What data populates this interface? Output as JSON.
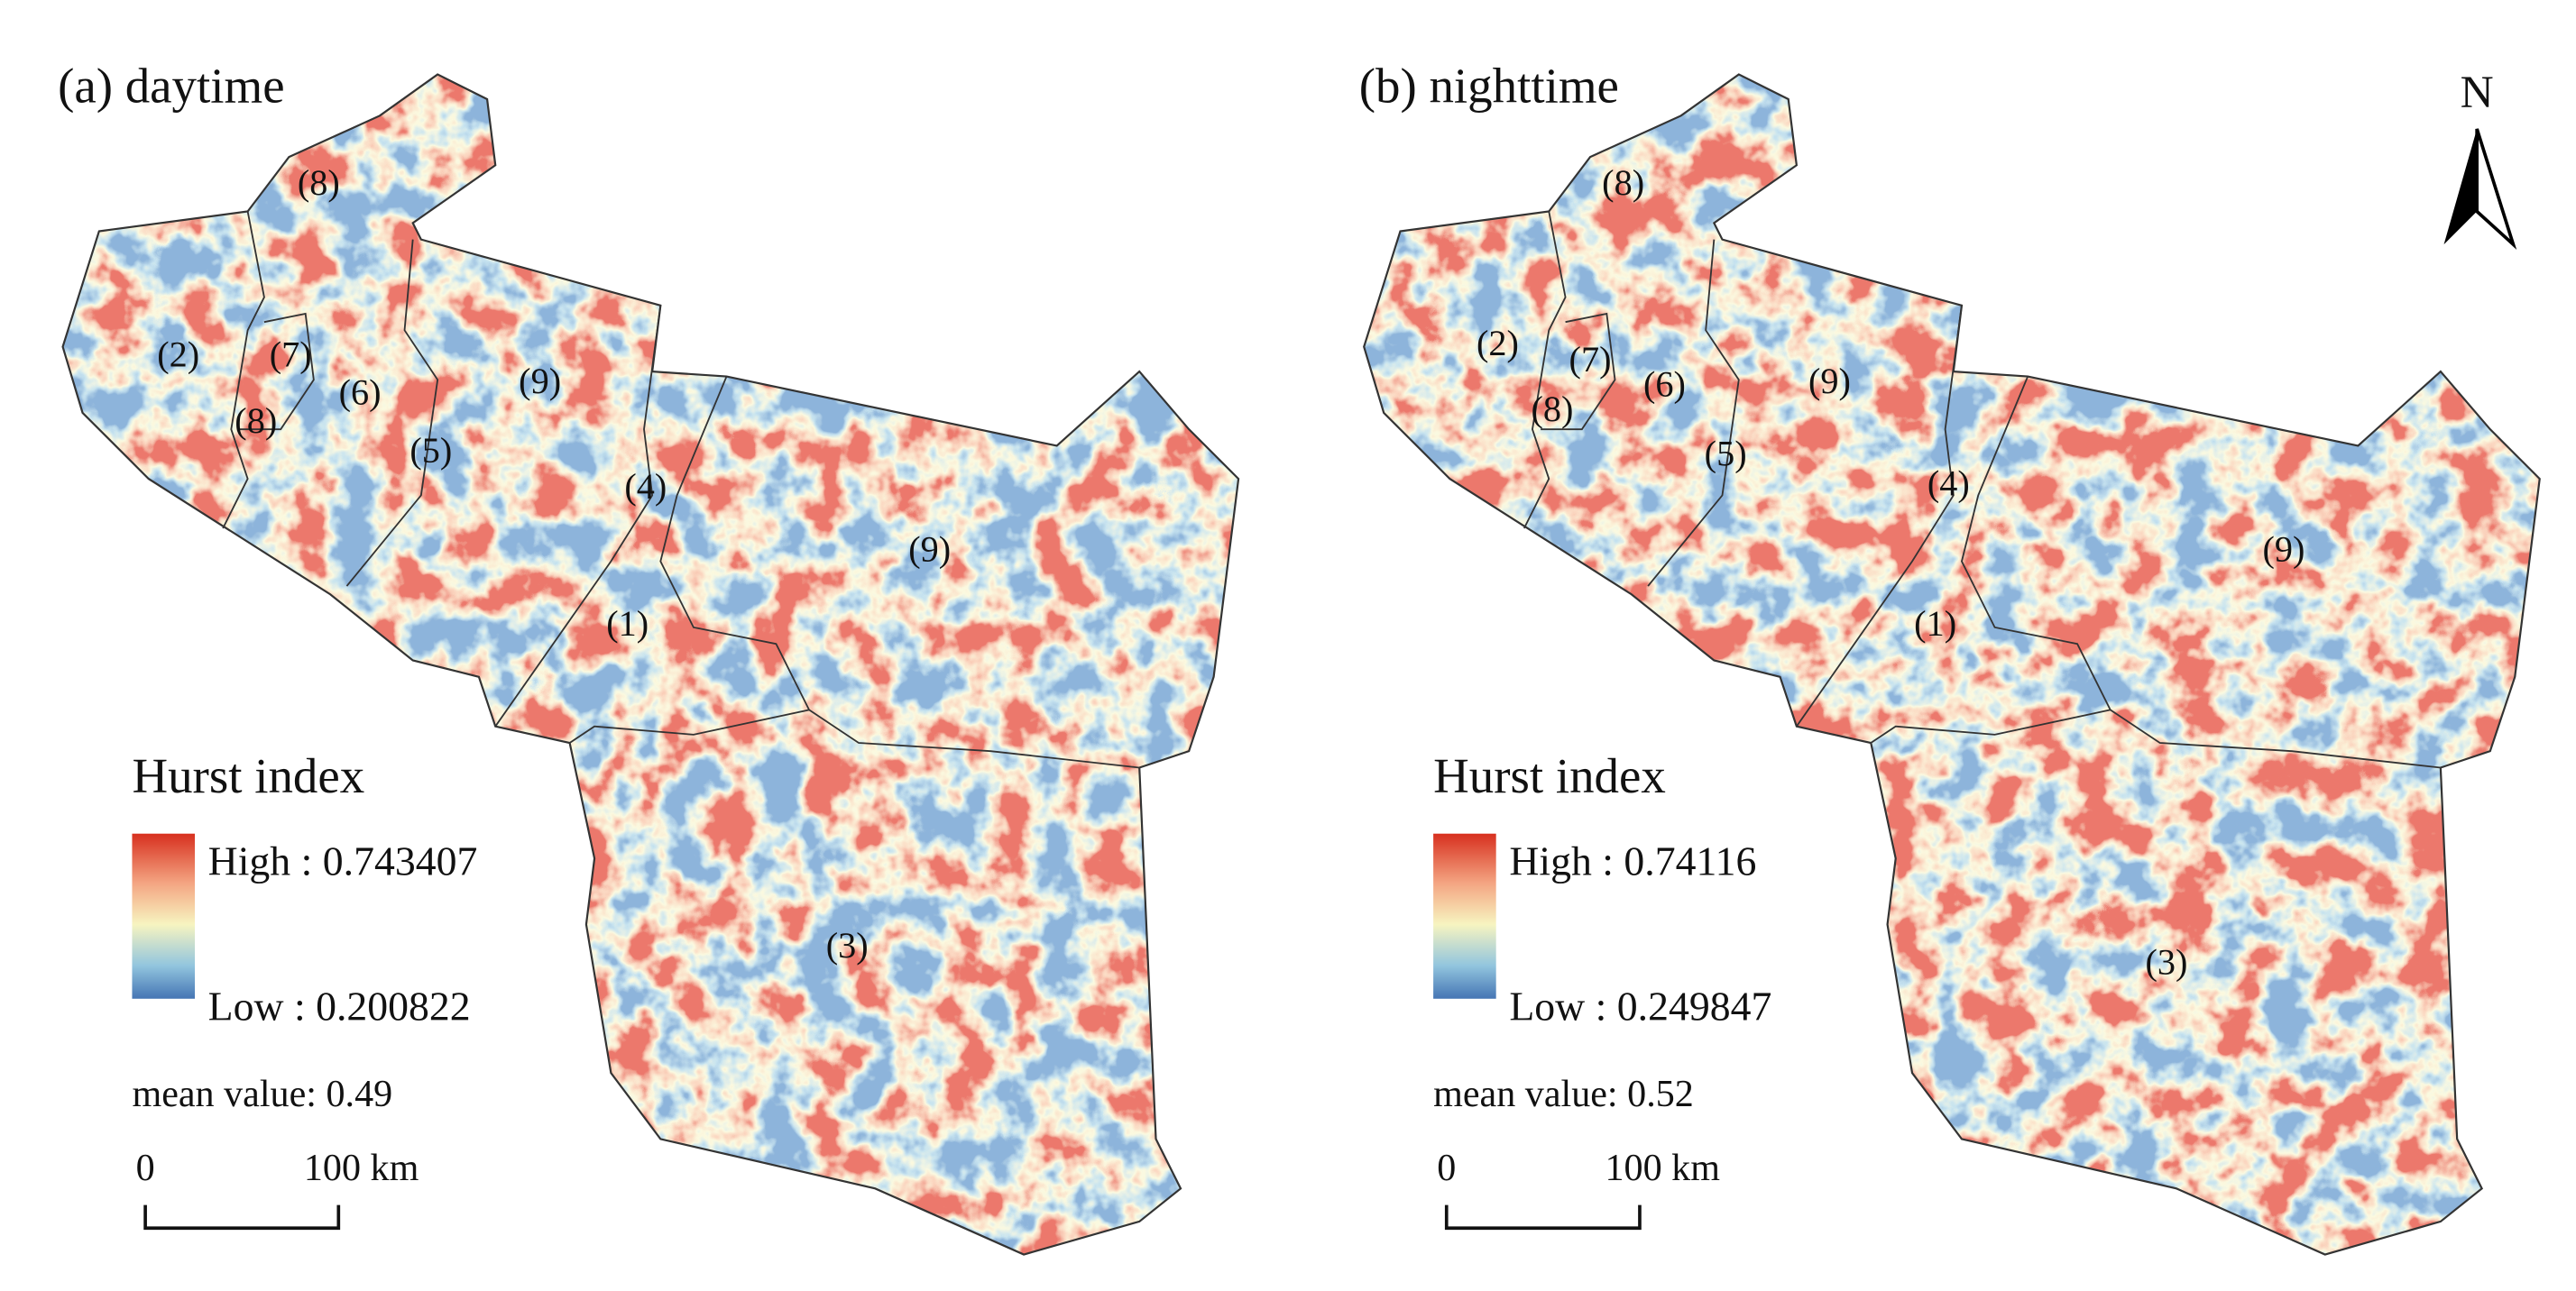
{
  "north": "N",
  "panels": [
    {
      "title": "(a) daytime",
      "region_labels": [
        "(8)",
        "(2)",
        "(7)",
        "(8)",
        "(6)",
        "(9)",
        "(5)",
        "(4)",
        "(9)",
        "(1)",
        "(3)"
      ],
      "legend": {
        "title": "Hurst index",
        "high": "High : 0.743407",
        "low": "Low : 0.200822"
      },
      "mean": "mean value: 0.49",
      "scale": {
        "start": "0",
        "end": "100 km"
      }
    },
    {
      "title": "(b) nighttime",
      "region_labels": [
        "(8)",
        "(2)",
        "(7)",
        "(8)",
        "(6)",
        "(9)",
        "(5)",
        "(4)",
        "(9)",
        "(1)",
        "(3)"
      ],
      "legend": {
        "title": "Hurst index",
        "high": "High : 0.74116",
        "low": "Low : 0.249847"
      },
      "mean": "mean value: 0.52",
      "scale": {
        "start": "0",
        "end": "100 km"
      }
    }
  ]
}
